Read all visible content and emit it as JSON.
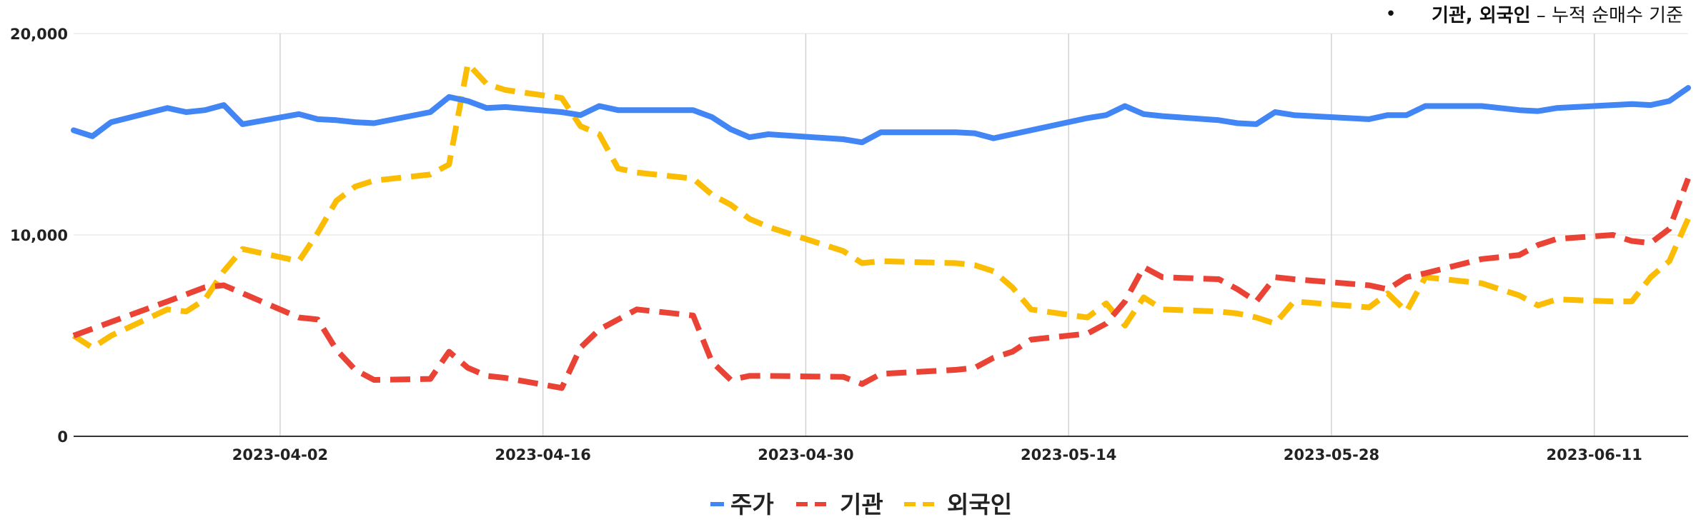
{
  "chart_data": {
    "type": "line",
    "title": "",
    "xlabel": "",
    "ylabel": "",
    "note": {
      "bullet": "•",
      "bold_text": "기관, 외국인",
      "text": " – 누적 순매수 기준"
    },
    "ylim": [
      0,
      20000
    ],
    "yticks": [
      {
        "value": 0,
        "label": "0"
      },
      {
        "value": 10000,
        "label": "10,000"
      },
      {
        "value": 20000,
        "label": "20,000"
      }
    ],
    "xlim": [
      "2023-03-22",
      "2023-06-16"
    ],
    "xticks": [
      "2023-04-02",
      "2023-04-16",
      "2023-04-30",
      "2023-05-14",
      "2023-05-28",
      "2023-06-11"
    ],
    "grid": {
      "vertical": true,
      "horizontal": true
    },
    "legend_position": "bottom",
    "series": [
      {
        "name": "주가",
        "color": "#4285f4",
        "style": "solid",
        "x": [
          "2023-03-22",
          "2023-03-23",
          "2023-03-24",
          "2023-03-27",
          "2023-03-28",
          "2023-03-29",
          "2023-03-30",
          "2023-03-31",
          "2023-04-03",
          "2023-04-04",
          "2023-04-05",
          "2023-04-06",
          "2023-04-07",
          "2023-04-10",
          "2023-04-11",
          "2023-04-12",
          "2023-04-13",
          "2023-04-14",
          "2023-04-17",
          "2023-04-18",
          "2023-04-19",
          "2023-04-20",
          "2023-04-21",
          "2023-04-24",
          "2023-04-25",
          "2023-04-26",
          "2023-04-27",
          "2023-04-28",
          "2023-05-02",
          "2023-05-03",
          "2023-05-04",
          "2023-05-08",
          "2023-05-09",
          "2023-05-10",
          "2023-05-11",
          "2023-05-12",
          "2023-05-15",
          "2023-05-16",
          "2023-05-17",
          "2023-05-18",
          "2023-05-19",
          "2023-05-22",
          "2023-05-23",
          "2023-05-24",
          "2023-05-25",
          "2023-05-26",
          "2023-05-30",
          "2023-05-31",
          "2023-06-01",
          "2023-06-02",
          "2023-06-05",
          "2023-06-07",
          "2023-06-08",
          "2023-06-09",
          "2023-06-12",
          "2023-06-13",
          "2023-06-14",
          "2023-06-15",
          "2023-06-16"
        ],
        "values": [
          15200,
          14900,
          15600,
          16300,
          16100,
          16200,
          16450,
          15500,
          16000,
          15750,
          15700,
          15600,
          15550,
          16100,
          16850,
          16650,
          16300,
          16350,
          16100,
          15950,
          16400,
          16200,
          16200,
          16200,
          15850,
          15250,
          14850,
          15000,
          14750,
          14600,
          15100,
          15100,
          15050,
          14800,
          15000,
          15200,
          15800,
          15950,
          16400,
          16000,
          15900,
          15700,
          15550,
          15500,
          16100,
          15950,
          15750,
          15950,
          15950,
          16400,
          16400,
          16200,
          16150,
          16300,
          16450,
          16500,
          16450,
          16650,
          17300
        ]
      },
      {
        "name": "기관",
        "color": "#ea4335",
        "style": "dashed",
        "x": [
          "2023-03-22",
          "2023-03-27",
          "2023-03-29",
          "2023-03-30",
          "2023-04-03",
          "2023-04-04",
          "2023-04-05",
          "2023-04-06",
          "2023-04-07",
          "2023-04-10",
          "2023-04-11",
          "2023-04-12",
          "2023-04-13",
          "2023-04-14",
          "2023-04-17",
          "2023-04-18",
          "2023-04-19",
          "2023-04-20",
          "2023-04-21",
          "2023-04-24",
          "2023-04-25",
          "2023-04-26",
          "2023-04-27",
          "2023-04-28",
          "2023-05-02",
          "2023-05-03",
          "2023-05-04",
          "2023-05-08",
          "2023-05-09",
          "2023-05-10",
          "2023-05-11",
          "2023-05-12",
          "2023-05-15",
          "2023-05-16",
          "2023-05-17",
          "2023-05-18",
          "2023-05-19",
          "2023-05-22",
          "2023-05-23",
          "2023-05-24",
          "2023-05-25",
          "2023-05-26",
          "2023-05-30",
          "2023-05-31",
          "2023-06-01",
          "2023-06-02",
          "2023-06-05",
          "2023-06-07",
          "2023-06-08",
          "2023-06-09",
          "2023-06-12",
          "2023-06-13",
          "2023-06-14",
          "2023-06-15",
          "2023-06-16"
        ],
        "values": [
          5000,
          6700,
          7400,
          7500,
          5900,
          5800,
          4300,
          3300,
          2800,
          2850,
          4200,
          3400,
          3000,
          2900,
          2400,
          4400,
          5300,
          5800,
          6300,
          6000,
          3700,
          2800,
          3000,
          3000,
          2950,
          2600,
          3100,
          3300,
          3400,
          3900,
          4200,
          4800,
          5100,
          5600,
          6700,
          8400,
          7900,
          7800,
          7300,
          6700,
          7900,
          7800,
          7500,
          7300,
          7900,
          8100,
          8800,
          9000,
          9500,
          9800,
          10000,
          9700,
          9600,
          10300,
          12800
        ]
      },
      {
        "name": "외국인",
        "color": "#fbbc04",
        "style": "dashed",
        "x": [
          "2023-03-22",
          "2023-03-23",
          "2023-03-24",
          "2023-03-27",
          "2023-03-28",
          "2023-03-29",
          "2023-03-30",
          "2023-03-31",
          "2023-04-03",
          "2023-04-04",
          "2023-04-05",
          "2023-04-06",
          "2023-04-07",
          "2023-04-10",
          "2023-04-11",
          "2023-04-12",
          "2023-04-13",
          "2023-04-14",
          "2023-04-17",
          "2023-04-18",
          "2023-04-19",
          "2023-04-20",
          "2023-04-21",
          "2023-04-24",
          "2023-04-25",
          "2023-04-26",
          "2023-04-27",
          "2023-04-28",
          "2023-05-02",
          "2023-05-03",
          "2023-05-04",
          "2023-05-08",
          "2023-05-09",
          "2023-05-10",
          "2023-05-11",
          "2023-05-12",
          "2023-05-15",
          "2023-05-16",
          "2023-05-17",
          "2023-05-18",
          "2023-05-19",
          "2023-05-22",
          "2023-05-23",
          "2023-05-24",
          "2023-05-25",
          "2023-05-26",
          "2023-05-30",
          "2023-05-31",
          "2023-06-01",
          "2023-06-02",
          "2023-06-05",
          "2023-06-07",
          "2023-06-08",
          "2023-06-09",
          "2023-06-12",
          "2023-06-13",
          "2023-06-14",
          "2023-06-15",
          "2023-06-16"
        ],
        "values": [
          5000,
          4400,
          5000,
          6300,
          6200,
          6800,
          8200,
          9300,
          8700,
          10100,
          11700,
          12400,
          12700,
          13000,
          13500,
          18500,
          17500,
          17200,
          16800,
          15400,
          15000,
          13300,
          13100,
          12800,
          12000,
          11500,
          10800,
          10400,
          9200,
          8600,
          8700,
          8600,
          8500,
          8200,
          7400,
          6300,
          5900,
          6600,
          5500,
          6900,
          6300,
          6200,
          6100,
          5900,
          5600,
          6700,
          6400,
          7100,
          6200,
          7900,
          7600,
          7000,
          6500,
          6800,
          6700,
          6700,
          7900,
          8700,
          10800
        ]
      }
    ]
  }
}
